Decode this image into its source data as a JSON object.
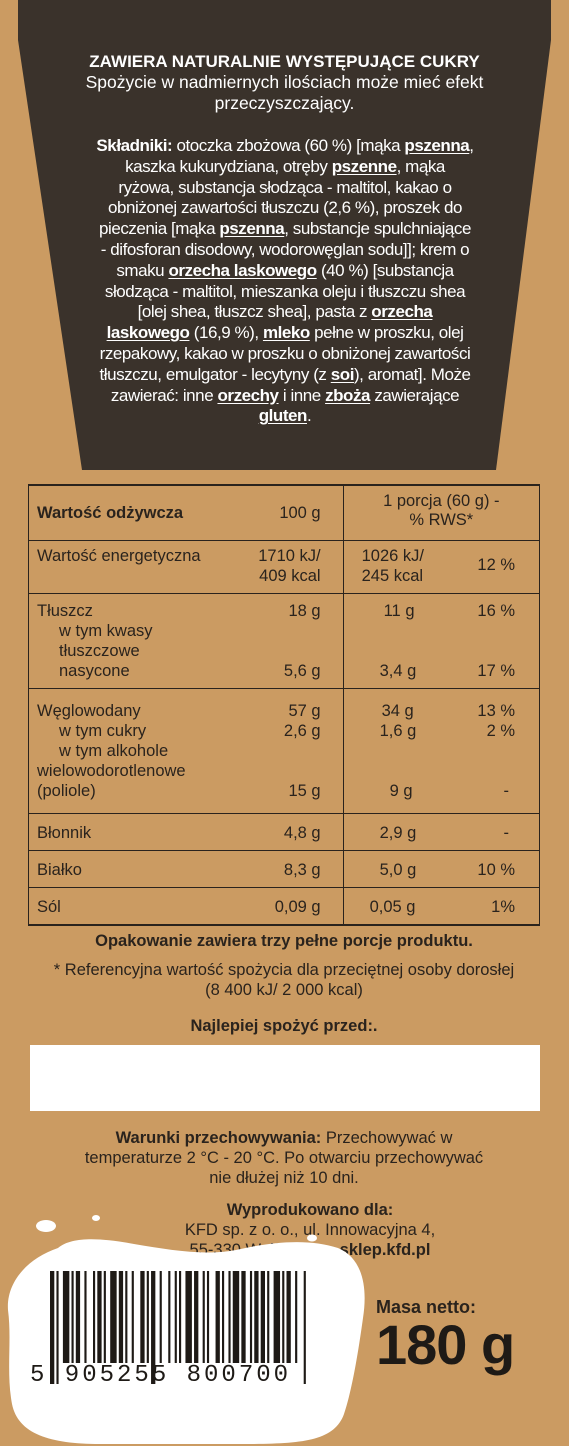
{
  "warning": {
    "title": "ZAWIERA NATURALNIE WYSTĘPUJĄCE CUKRY",
    "subtitle": "Spożycie w nadmiernych ilościach może mieć efekt przeczyszczający."
  },
  "ingredients": {
    "label": "Składniki:",
    "parts": [
      " otoczka zbożowa (60 %) [mąka ",
      "pszenna",
      ", kaszka kukurydziana, otręby ",
      "pszenne",
      ", mąka ryżowa, substancja słodząca - maltitol, kakao o obniżonej zawartości tłuszczu (2,6 %), proszek do pieczenia [mąka ",
      "pszenna",
      ", substancje spulchniające - difosforan disodowy, wodorowęglan sodu]]; krem o smaku ",
      "orzecha laskowego",
      " (40 %) [substancja słodząca - maltitol, mieszanka oleju i tłuszczu shea [olej shea, tłuszcz shea], pasta z ",
      "orzecha laskowego",
      " (16,9 %), ",
      "mleko",
      " pełne w proszku, olej rzepakowy, kakao w proszku o obniżonej zawartości tłuszczu, emulgator - lecytyny (z ",
      "soi",
      "), aromat]. Może zawierać: inne ",
      "orzechy",
      " i inne ",
      "zboża",
      " zawierające ",
      "gluten",
      "."
    ]
  },
  "nutrition": {
    "header": {
      "label": "Wartość odżywcza",
      "per100": "100 g",
      "portion_line1": "1 porcja (60 g) -",
      "portion_line2": "% RWS*"
    },
    "energy": {
      "label": "Wartość energetyczna",
      "v100_1": "1710 kJ/",
      "v100_2": "409  kcal",
      "vp_1": "1026 kJ/",
      "vp_2": "245 kcal",
      "rws": "12 %"
    },
    "fat": {
      "label": "Tłuszcz",
      "v100": "18  g",
      "vp": "11 g",
      "rws": "16 %",
      "sub1": "w tym kwasy",
      "sub2": "tłuszczowe",
      "sub3": "nasycone",
      "sub_v100": "5,6 g",
      "sub_vp": "3,4 g",
      "sub_rws": "17 %"
    },
    "carbs": {
      "label": "Węglowodany",
      "v100": "57 g",
      "vp": "34 g",
      "rws": "13 %",
      "sugar_label": "w tym cukry",
      "sugar_v100": "2,6  g",
      "sugar_vp": "1,6 g",
      "sugar_rws": "2 %",
      "poly1": "w tym alkohole",
      "poly2": "wielowodorotlenowe",
      "poly3": "(poliole)",
      "poly_v100": "15  g",
      "poly_vp": "9 g",
      "poly_rws": "-"
    },
    "fiber": {
      "label": "Błonnik",
      "v100": "4,8 g",
      "vp": "2,9 g",
      "rws": "-"
    },
    "protein": {
      "label": "Białko",
      "v100": "8,3 g",
      "vp": "5,0 g",
      "rws": "10 %"
    },
    "salt": {
      "label": "Sól",
      "v100": "0,09 g",
      "vp": "0,05 g",
      "rws": "1%"
    }
  },
  "package_note": "Opakowanie zawiera trzy pełne porcje produktu.",
  "reference_note": "* Referencyjna wartość spożycia dla przeciętnej osoby dorosłej (8 400 kJ/ 2 000 kcal)",
  "best_before": "Najlepiej spożyć przed:.",
  "storage": {
    "label": "Warunki przechowywania:",
    "text": " Przechowywać w temperaturze 2 °C - 20 °C. Po otwarciu przechowywać nie dłużej niż 10 dni."
  },
  "producer": {
    "label": "Wyprodukowano dla:",
    "line1": "KFD sp. z o. o., ul. Innowacyjna 4,",
    "line2": "55-330 Wróblowice, ",
    "site": "sklep.kfd.pl"
  },
  "barcode_digits": "5 905255 800700",
  "net": {
    "label": "Masa netto:",
    "value": "180 g"
  },
  "colors": {
    "background": "#cb9b62",
    "panel": "#3a322b",
    "text": "#2a231d"
  }
}
